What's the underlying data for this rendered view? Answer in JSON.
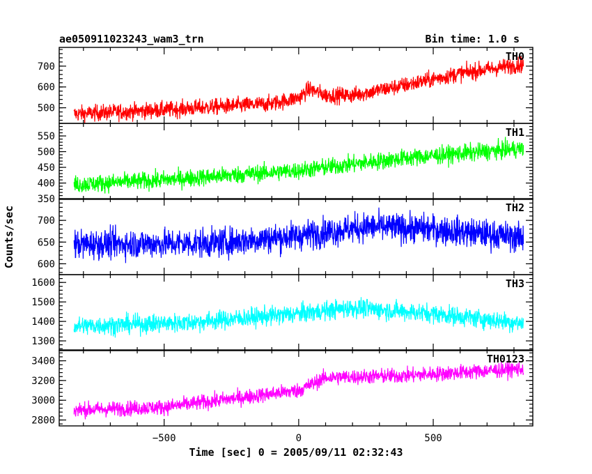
{
  "chart_data": {
    "type": "line",
    "title": "ae050911023243_wam3_trn",
    "subtitle": "Bin time: 1.0 s",
    "xlabel": "Time [sec] 0 = 2005/09/11 02:32:43",
    "ylabel": "Counts/sec",
    "xlim": [
      -890,
      870
    ],
    "x_ticks": [
      -500,
      0,
      500
    ],
    "x_tick_labels": [
      "−500",
      "0",
      "500"
    ],
    "x_data_range": [
      -835,
      835
    ],
    "panels": [
      {
        "name": "TH0",
        "color": "#ff0000",
        "ylim": [
          425,
          790
        ],
        "y_ticks": [
          500,
          600,
          700
        ],
        "y_tick_labels": [
          "500",
          "600",
          "700"
        ],
        "trend": {
          "x": [
            -835,
            -500,
            -100,
            0,
            40,
            100,
            200,
            400,
            600,
            835
          ],
          "y": [
            470,
            490,
            520,
            548,
            590,
            560,
            560,
            610,
            665,
            710
          ]
        },
        "noise": 28
      },
      {
        "name": "TH1",
        "color": "#00ff00",
        "ylim": [
          348,
          590
        ],
        "y_ticks": [
          350,
          400,
          450,
          500,
          550
        ],
        "y_tick_labels": [
          "350",
          "400",
          "450",
          "500",
          "550"
        ],
        "trend": {
          "x": [
            -835,
            -500,
            0,
            400,
            835
          ],
          "y": [
            395,
            410,
            440,
            480,
            510
          ]
        },
        "noise": 20
      },
      {
        "name": "TH2",
        "color": "#0000ff",
        "ylim": [
          575,
          750
        ],
        "y_ticks": [
          600,
          650,
          700
        ],
        "y_tick_labels": [
          "600",
          "650",
          "700"
        ],
        "trend": {
          "x": [
            -835,
            -300,
            0,
            250,
            500,
            835
          ],
          "y": [
            645,
            648,
            665,
            685,
            680,
            660
          ]
        },
        "noise": 24
      },
      {
        "name": "TH3",
        "color": "#00ffff",
        "ylim": [
          1250,
          1640
        ],
        "y_ticks": [
          1300,
          1400,
          1500,
          1600
        ],
        "y_tick_labels": [
          "1300",
          "1400",
          "1500",
          "1600"
        ],
        "trend": {
          "x": [
            -835,
            -400,
            0,
            200,
            500,
            835
          ],
          "y": [
            1375,
            1395,
            1440,
            1470,
            1440,
            1390
          ]
        },
        "noise": 35
      },
      {
        "name": "TH0123",
        "color": "#ff00ff",
        "ylim": [
          2740,
          3510
        ],
        "y_ticks": [
          2800,
          3000,
          3200,
          3400
        ],
        "y_tick_labels": [
          "2800",
          "3000",
          "3200",
          "3400"
        ],
        "trend": {
          "x": [
            -835,
            -500,
            0,
            100,
            400,
            835
          ],
          "y": [
            2900,
            2930,
            3100,
            3230,
            3250,
            3320
          ]
        },
        "noise": 55
      }
    ]
  }
}
